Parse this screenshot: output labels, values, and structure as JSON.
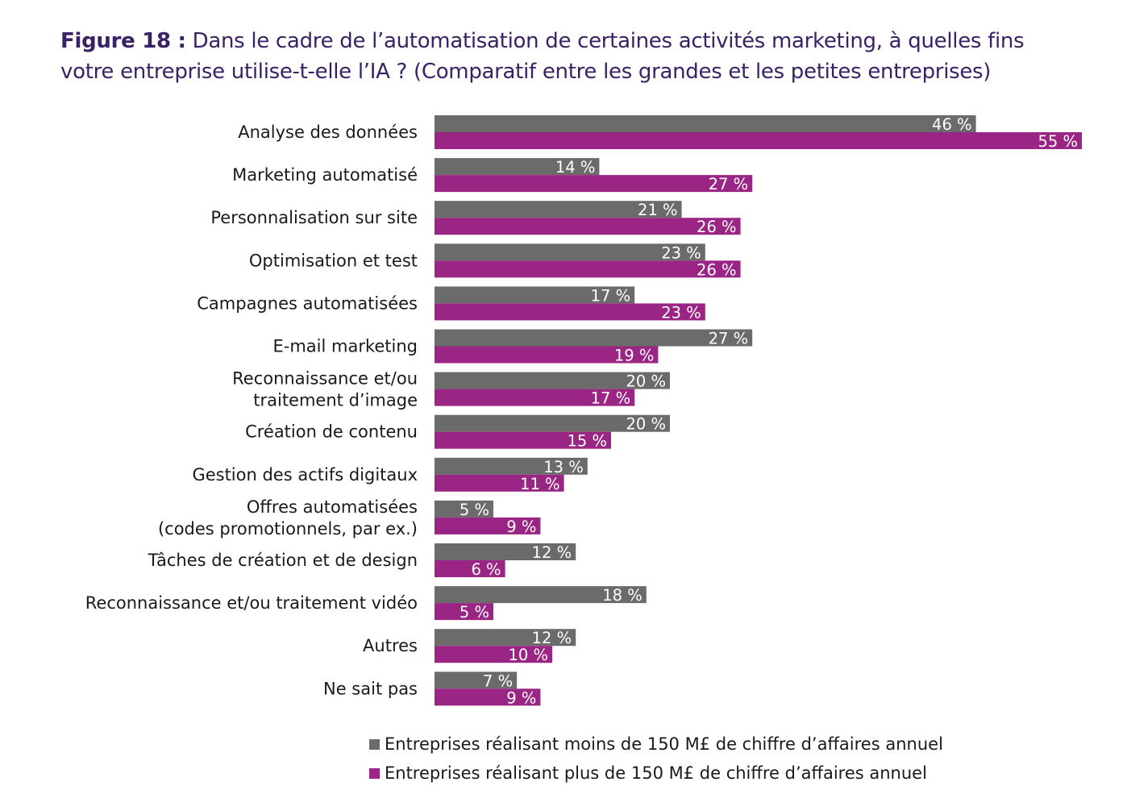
{
  "title": {
    "figure_label": "Figure 18 :",
    "text": "Dans le cadre de l’automatisation de certaines activités marketing, à quelles fins votre entreprise utilise-t-elle l’IA ? (Comparatif entre les grandes et les petites entreprises)"
  },
  "chart_data": {
    "type": "bar",
    "orientation": "horizontal",
    "title": "Figure 18 : Dans le cadre de l’automatisation de certaines activités marketing, à quelles fins votre entreprise utilise-t-elle l’IA ? (Comparatif entre les grandes et les petites entreprises)",
    "xlabel": "",
    "ylabel": "",
    "xlim": [
      0,
      60
    ],
    "value_suffix": " %",
    "grid": false,
    "legend_position": "bottom",
    "categories": [
      "Analyse des données",
      "Marketing automatisé",
      "Personnalisation sur site",
      "Optimisation et test",
      "Campagnes automatisées",
      "E-mail marketing",
      "Reconnaissance et/ou traitement d’image",
      "Création de contenu",
      "Gestion des actifs digitaux",
      "Offres automatisées (codes promotionnels, par ex.)",
      "Tâches de création et de design",
      "Reconnaissance et/ou traitement vidéo",
      "Autres",
      "Ne sait pas"
    ],
    "category_lines": [
      [
        "Analyse des données"
      ],
      [
        "Marketing automatisé"
      ],
      [
        "Personnalisation sur site"
      ],
      [
        "Optimisation et test"
      ],
      [
        "Campagnes automatisées"
      ],
      [
        "E-mail marketing"
      ],
      [
        "Reconnaissance et/ou",
        "traitement d’image"
      ],
      [
        "Création de contenu"
      ],
      [
        "Gestion des actifs digitaux"
      ],
      [
        "Offres automatisées",
        "(codes promotionnels, par ex.)"
      ],
      [
        "Tâches de création et de design"
      ],
      [
        "Reconnaissance et/ou traitement vidéo"
      ],
      [
        "Autres"
      ],
      [
        "Ne sait pas"
      ]
    ],
    "series": [
      {
        "name": "Entreprises réalisant moins de 150 M£ de chiffre d’affaires annuel",
        "color": "#6b6b6b",
        "values": [
          46,
          14,
          21,
          23,
          17,
          27,
          20,
          20,
          13,
          5,
          12,
          18,
          12,
          7
        ]
      },
      {
        "name": "Entreprises réalisant plus de 150 M£ de chiffre d’affaires annuel",
        "color": "#9b2584",
        "values": [
          55,
          27,
          26,
          26,
          23,
          19,
          17,
          15,
          11,
          9,
          6,
          5,
          10,
          9
        ]
      }
    ]
  }
}
